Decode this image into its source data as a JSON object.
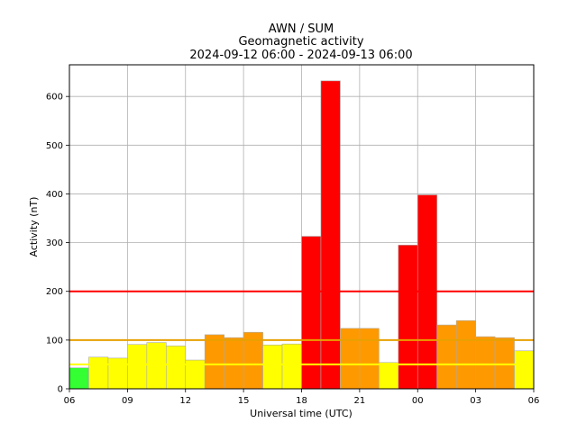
{
  "chart_data": {
    "type": "bar",
    "title_lines": [
      "AWN / SUM",
      "Geomagnetic activity",
      "2024-09-12 06:00 - 2024-09-13 06:00"
    ],
    "xlabel": "Universal time (UTC)",
    "ylabel": "Activity (nT)",
    "xlim": [
      0,
      24
    ],
    "ylim": [
      0,
      665
    ],
    "x_ticks": [
      {
        "hour": 0,
        "label": "06"
      },
      {
        "hour": 3,
        "label": "09"
      },
      {
        "hour": 6,
        "label": "12"
      },
      {
        "hour": 9,
        "label": "15"
      },
      {
        "hour": 12,
        "label": "18"
      },
      {
        "hour": 15,
        "label": "21"
      },
      {
        "hour": 18,
        "label": "00"
      },
      {
        "hour": 21,
        "label": "03"
      },
      {
        "hour": 24,
        "label": "06"
      }
    ],
    "y_ticks": [
      0,
      100,
      200,
      300,
      400,
      500,
      600
    ],
    "grid": true,
    "threshold_lines": [
      {
        "value": 50,
        "color": "#ffff00"
      },
      {
        "value": 100,
        "color": "#e8a000"
      },
      {
        "value": 200,
        "color": "#ff0000"
      }
    ],
    "level_colors": {
      "low": "#33ff33",
      "moderate": "#ffff00",
      "active": "#ff9900",
      "storm": "#ff0000"
    },
    "bars": [
      {
        "hour": 0,
        "value": 43,
        "level": "low"
      },
      {
        "hour": 1,
        "value": 65,
        "level": "moderate"
      },
      {
        "hour": 2,
        "value": 63,
        "level": "moderate"
      },
      {
        "hour": 3,
        "value": 91,
        "level": "moderate"
      },
      {
        "hour": 4,
        "value": 95,
        "level": "moderate"
      },
      {
        "hour": 5,
        "value": 88,
        "level": "moderate"
      },
      {
        "hour": 6,
        "value": 59,
        "level": "moderate"
      },
      {
        "hour": 7,
        "value": 111,
        "level": "active"
      },
      {
        "hour": 8,
        "value": 105,
        "level": "active"
      },
      {
        "hour": 9,
        "value": 116,
        "level": "active"
      },
      {
        "hour": 10,
        "value": 90,
        "level": "moderate"
      },
      {
        "hour": 11,
        "value": 92,
        "level": "moderate"
      },
      {
        "hour": 12,
        "value": 313,
        "level": "storm"
      },
      {
        "hour": 13,
        "value": 632,
        "level": "storm"
      },
      {
        "hour": 14,
        "value": 124,
        "level": "active"
      },
      {
        "hour": 15,
        "value": 124,
        "level": "active"
      },
      {
        "hour": 16,
        "value": 54,
        "level": "moderate"
      },
      {
        "hour": 17,
        "value": 295,
        "level": "storm"
      },
      {
        "hour": 18,
        "value": 398,
        "level": "storm"
      },
      {
        "hour": 19,
        "value": 131,
        "level": "active"
      },
      {
        "hour": 20,
        "value": 140,
        "level": "active"
      },
      {
        "hour": 21,
        "value": 107,
        "level": "active"
      },
      {
        "hour": 22,
        "value": 105,
        "level": "active"
      },
      {
        "hour": 23,
        "value": 78,
        "level": "moderate"
      }
    ]
  }
}
